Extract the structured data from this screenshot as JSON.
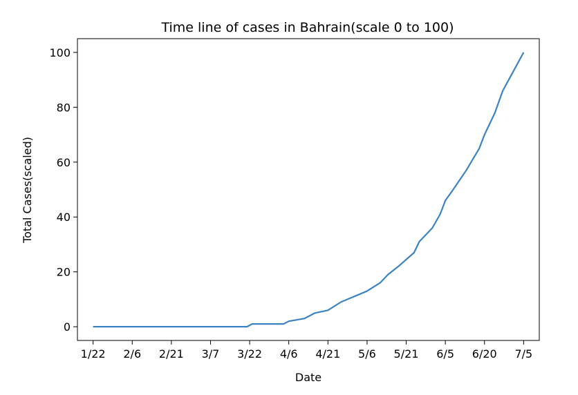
{
  "chart_data": {
    "type": "line",
    "title": "Time line of cases in Bahrain(scale 0 to 100)",
    "xlabel": "Date",
    "ylabel": "Total Cases(scaled)",
    "x_tick_labels": [
      "1/22",
      "2/6",
      "2/21",
      "3/7",
      "3/22",
      "4/6",
      "4/21",
      "5/6",
      "5/21",
      "6/5",
      "6/20",
      "7/5"
    ],
    "y_ticks": [
      0,
      20,
      40,
      60,
      80,
      100
    ],
    "ylim": [
      -5,
      105
    ],
    "xlim": [
      "1/16/2020",
      "7/11/2020"
    ],
    "grid": false,
    "line_color": "#3b82c4",
    "series": [
      {
        "x": [
          "1/22/2020",
          "3/21/2020",
          "3/23/2020",
          "4/4/2020",
          "4/6/2020",
          "4/12/2020",
          "4/16/2020",
          "4/21/2020",
          "4/26/2020",
          "5/1/2020",
          "5/6/2020",
          "5/11/2020",
          "5/14/2020",
          "5/18/2020",
          "5/24/2020",
          "5/26/2020",
          "5/31/2020",
          "6/3/2020",
          "6/5/2020",
          "6/8/2020",
          "6/13/2020",
          "6/18/2020",
          "6/20/2020",
          "6/24/2020",
          "6/27/2020",
          "7/1/2020",
          "7/5/2020"
        ],
        "y": [
          0,
          0,
          1,
          1,
          2,
          3,
          5,
          6,
          9,
          11,
          13,
          16,
          19,
          22,
          27,
          31,
          36,
          41,
          46,
          50,
          57,
          65,
          70,
          78,
          86,
          93,
          100
        ]
      }
    ]
  }
}
